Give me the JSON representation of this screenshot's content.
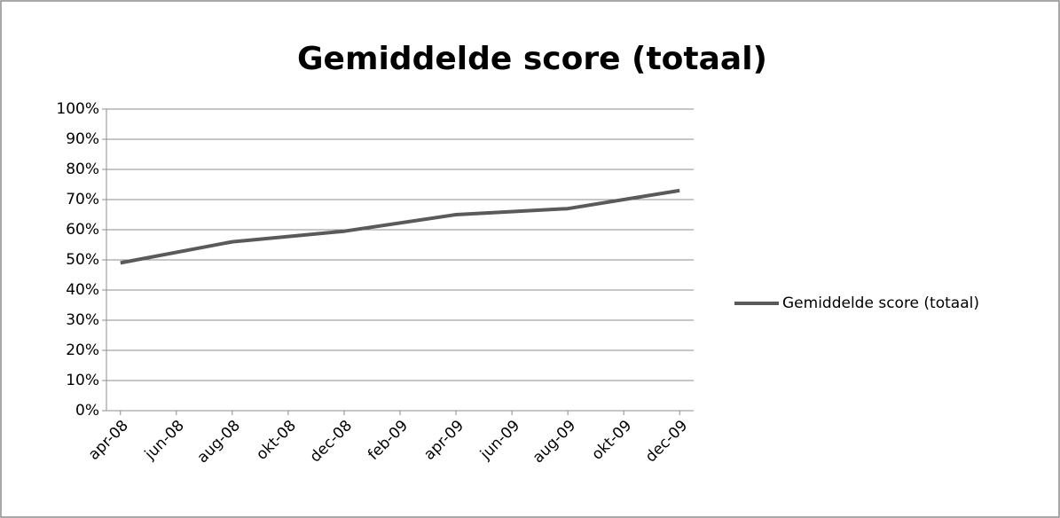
{
  "chart_data": {
    "type": "line",
    "title": "Gemiddelde score (totaal)",
    "x": [
      "apr-08",
      "aug-08",
      "dec-08",
      "apr-09",
      "aug-09",
      "dec-09"
    ],
    "series": [
      {
        "name": "Gemiddelde score (totaal)",
        "color": "#5a5a5a",
        "values": [
          49,
          56,
          59.5,
          65,
          67,
          73
        ]
      }
    ],
    "xlim": [
      -0.5,
      20.5
    ],
    "xticks": [
      {
        "value": 0,
        "label": "apr-08"
      },
      {
        "value": 2,
        "label": "jun-08"
      },
      {
        "value": 4,
        "label": "aug-08"
      },
      {
        "value": 6,
        "label": "okt-08"
      },
      {
        "value": 8,
        "label": "dec-08"
      },
      {
        "value": 10,
        "label": "feb-09"
      },
      {
        "value": 12,
        "label": "apr-09"
      },
      {
        "value": 14,
        "label": "jun-09"
      },
      {
        "value": 16,
        "label": "aug-09"
      },
      {
        "value": 18,
        "label": "okt-09"
      },
      {
        "value": 20,
        "label": "dec-09"
      }
    ],
    "ylim": [
      0,
      100
    ],
    "yticks": [
      {
        "value": 0,
        "label": "0%"
      },
      {
        "value": 10,
        "label": "10%"
      },
      {
        "value": 20,
        "label": "20%"
      },
      {
        "value": 30,
        "label": "30%"
      },
      {
        "value": 40,
        "label": "40%"
      },
      {
        "value": 50,
        "label": "50%"
      },
      {
        "value": 60,
        "label": "60%"
      },
      {
        "value": 70,
        "label": "70%"
      },
      {
        "value": 80,
        "label": "80%"
      },
      {
        "value": 90,
        "label": "90%"
      },
      {
        "value": 100,
        "label": "100%"
      }
    ],
    "grid": true,
    "legend": "right"
  }
}
